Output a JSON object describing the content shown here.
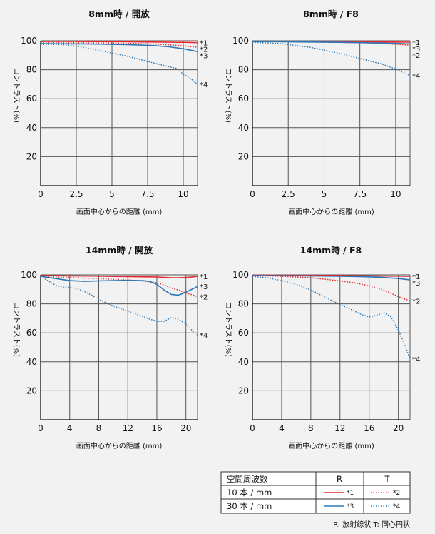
{
  "chart_data": [
    {
      "type": "line",
      "title": "8mm時 / 開放",
      "xlabel": "画面中心からの距離 (mm)",
      "ylabel": "コントラスト(%)",
      "xlim": [
        0,
        11
      ],
      "ylim": [
        0,
        100
      ],
      "xticks": [
        "0",
        "2.5",
        "5",
        "7.5",
        "10"
      ],
      "xtick_values": [
        0,
        2.5,
        5,
        7.5,
        10
      ],
      "yticks": [
        "100",
        "80",
        "60",
        "40",
        "20"
      ],
      "ytick_values": [
        100,
        80,
        60,
        40,
        20
      ],
      "series": [
        {
          "name": "*1",
          "color": "#e8262c",
          "style": "solid",
          "x": [
            0,
            2,
            4,
            6,
            8,
            10,
            11
          ],
          "y": [
            99.5,
            99.5,
            99.4,
            99.3,
            99.1,
            98.9,
            98.7
          ]
        },
        {
          "name": "*2",
          "color": "#e8262c",
          "style": "dotted",
          "x": [
            0,
            2,
            4,
            6,
            7,
            8,
            9,
            10,
            11
          ],
          "y": [
            98.8,
            98.7,
            98.5,
            98.2,
            98,
            97.7,
            97.2,
            96.5,
            95.5
          ]
        },
        {
          "name": "*3",
          "color": "#2a78b8",
          "style": "solid",
          "x": [
            0,
            2,
            4,
            6,
            7,
            8,
            9,
            10,
            11
          ],
          "y": [
            98,
            97.9,
            97.7,
            97.3,
            97,
            96.6,
            95.8,
            94.5,
            92.5
          ]
        },
        {
          "name": "*4",
          "color": "#2a78b8",
          "style": "dotted",
          "x": [
            0,
            1,
            2,
            3,
            4,
            5,
            6,
            7,
            8,
            9,
            9.5,
            10,
            10.5,
            11
          ],
          "y": [
            97.5,
            97.5,
            97,
            95.5,
            93.5,
            91.5,
            89.5,
            87,
            84.5,
            82,
            81,
            77,
            74,
            70
          ]
        }
      ]
    },
    {
      "type": "line",
      "title": "8mm時 / F8",
      "xlabel": "画面中心からの距離 (mm)",
      "ylabel": "コントラスト(%)",
      "xlim": [
        0,
        11
      ],
      "ylim": [
        0,
        100
      ],
      "xticks": [
        "0",
        "2.5",
        "5",
        "7.5",
        "10"
      ],
      "xtick_values": [
        0,
        2.5,
        5,
        7.5,
        10
      ],
      "yticks": [
        "100",
        "80",
        "60",
        "40",
        "20"
      ],
      "ytick_values": [
        100,
        80,
        60,
        40,
        20
      ],
      "series": [
        {
          "name": "*1",
          "color": "#e8262c",
          "style": "solid",
          "x": [
            0,
            2,
            4,
            6,
            8,
            10,
            11
          ],
          "y": [
            99.6,
            99.6,
            99.5,
            99.4,
            99.3,
            99.1,
            99
          ]
        },
        {
          "name": "*2",
          "color": "#e8262c",
          "style": "dotted",
          "x": [
            0,
            2,
            4,
            6,
            8,
            9,
            10,
            11
          ],
          "y": [
            99.5,
            99.4,
            99.2,
            98.9,
            98.5,
            98.1,
            97.6,
            97
          ]
        },
        {
          "name": "*3",
          "color": "#2a78b8",
          "style": "solid",
          "x": [
            0,
            2,
            4,
            6,
            8,
            10,
            11
          ],
          "y": [
            99.4,
            99.3,
            99.1,
            98.9,
            98.6,
            98.2,
            97.8
          ]
        },
        {
          "name": "*4",
          "color": "#2a78b8",
          "style": "dotted",
          "x": [
            0,
            2,
            4,
            5,
            6,
            7,
            8,
            9,
            10,
            11
          ],
          "y": [
            99,
            98,
            95.5,
            93.5,
            91.5,
            89,
            86.5,
            84,
            80.5,
            76
          ]
        }
      ]
    },
    {
      "type": "line",
      "title": "14mm時 / 開放",
      "xlabel": "画面中心からの距離 (mm)",
      "ylabel": "コントラスト(%)",
      "xlim": [
        0,
        21.6
      ],
      "ylim": [
        0,
        100
      ],
      "xticks": [
        "0",
        "4",
        "8",
        "12",
        "16",
        "20"
      ],
      "xtick_values": [
        0,
        4,
        8,
        12,
        16,
        20
      ],
      "yticks": [
        "100",
        "80",
        "60",
        "40",
        "20"
      ],
      "ytick_values": [
        100,
        80,
        60,
        40,
        20
      ],
      "series": [
        {
          "name": "*1",
          "color": "#e8262c",
          "style": "solid",
          "x": [
            0,
            4,
            8,
            12,
            15,
            16,
            17,
            18,
            19,
            20,
            21,
            21.6
          ],
          "y": [
            99.5,
            99.3,
            99.1,
            98.8,
            98.6,
            98.5,
            98.3,
            98,
            98,
            98.2,
            98.6,
            99
          ]
        },
        {
          "name": "*2",
          "color": "#e8262c",
          "style": "dotted",
          "x": [
            0,
            4,
            8,
            12,
            14,
            16,
            17,
            18,
            19,
            20,
            21,
            21.6
          ],
          "y": [
            98.8,
            98.2,
            97.4,
            96.5,
            95.8,
            94.5,
            93,
            91,
            89.5,
            87.5,
            86,
            85
          ]
        },
        {
          "name": "*3",
          "color": "#2a78b8",
          "style": "solid",
          "x": [
            0,
            2,
            4,
            6,
            8,
            10,
            12,
            14,
            15,
            16,
            17,
            18,
            19,
            20,
            21,
            21.6
          ],
          "y": [
            99,
            97.5,
            96,
            95.5,
            95.8,
            96,
            96.2,
            96,
            95.5,
            93.5,
            89.5,
            86.5,
            86,
            88,
            90.5,
            92
          ]
        },
        {
          "name": "*4",
          "color": "#2a78b8",
          "style": "dotted",
          "x": [
            0,
            1,
            2,
            3,
            4,
            5,
            6,
            7,
            8,
            10,
            12,
            14,
            15,
            16,
            17,
            18,
            19,
            20,
            21,
            21.6
          ],
          "y": [
            99,
            96,
            93,
            91.5,
            91.5,
            90.5,
            88.5,
            86,
            83,
            78.5,
            75,
            71.5,
            69.5,
            68,
            68,
            70.5,
            69.5,
            66,
            61,
            58.5
          ]
        }
      ]
    },
    {
      "type": "line",
      "title": "14mm時 / F8",
      "xlabel": "画面中心からの距離 (mm)",
      "ylabel": "コントラスト(%)",
      "xlim": [
        0,
        21.6
      ],
      "ylim": [
        0,
        100
      ],
      "xticks": [
        "0",
        "4",
        "8",
        "12",
        "16",
        "20"
      ],
      "xtick_values": [
        0,
        4,
        8,
        12,
        16,
        20
      ],
      "yticks": [
        "100",
        "80",
        "60",
        "40",
        "20"
      ],
      "ytick_values": [
        100,
        80,
        60,
        40,
        20
      ],
      "series": [
        {
          "name": "*1",
          "color": "#e8262c",
          "style": "solid",
          "x": [
            0,
            4,
            8,
            12,
            16,
            20,
            21.6
          ],
          "y": [
            99.8,
            99.7,
            99.6,
            99.5,
            99.3,
            99.1,
            99
          ]
        },
        {
          "name": "*2",
          "color": "#e8262c",
          "style": "dotted",
          "x": [
            0,
            4,
            8,
            10,
            12,
            14,
            16,
            18,
            20,
            21.6
          ],
          "y": [
            99.5,
            99,
            98,
            97,
            95.8,
            94.5,
            92.5,
            89.5,
            85,
            82
          ]
        },
        {
          "name": "*3",
          "color": "#2a78b8",
          "style": "solid",
          "x": [
            0,
            4,
            8,
            12,
            16,
            18,
            20,
            21.6
          ],
          "y": [
            99.5,
            99.4,
            99.2,
            99,
            98.6,
            98.2,
            97.5,
            96.5
          ]
        },
        {
          "name": "*4",
          "color": "#2a78b8",
          "style": "dotted",
          "x": [
            0,
            2,
            4,
            6,
            8,
            10,
            12,
            14,
            15,
            16,
            17,
            18,
            19,
            20,
            21,
            21.6
          ],
          "y": [
            99,
            98,
            96,
            93.5,
            89.5,
            84.5,
            79.5,
            75,
            72.5,
            71,
            72,
            74,
            71,
            62,
            50,
            42
          ]
        }
      ]
    }
  ],
  "legend": {
    "header": [
      "空間周波数",
      "R",
      "T"
    ],
    "rows": [
      {
        "label": "10 本 / mm",
        "r_mark": "*1",
        "t_mark": "*2"
      },
      {
        "label": "30 本 / mm",
        "r_mark": "*3",
        "t_mark": "*4"
      }
    ]
  },
  "footnote": "R: 放射線状  T: 同心円状"
}
